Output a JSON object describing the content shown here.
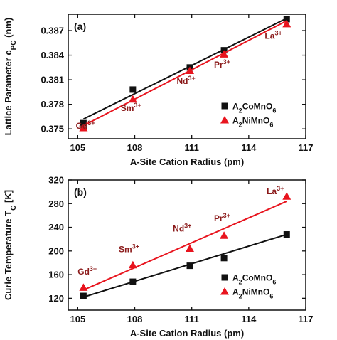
{
  "colors": {
    "co_series": "#111111",
    "ni_series": "#e8141e",
    "ion_label": "#8b1a1a"
  },
  "chart_data": [
    {
      "type": "scatter",
      "panel_label": "(a)",
      "xlabel": "A-Site Cation Radius (pm)",
      "ylabel": "Lattice Parameter c",
      "ylabel_sub": "PC",
      "ylabel_unit": " (nm)",
      "xlim": [
        104.5,
        117
      ],
      "ylim": [
        0.3738,
        0.389
      ],
      "xticks": [
        105,
        108,
        111,
        114,
        117
      ],
      "yticks": [
        0.375,
        0.378,
        0.381,
        0.384,
        0.387
      ],
      "xtick_labels": [
        "105",
        "108",
        "111",
        "114",
        "117"
      ],
      "ytick_labels": [
        "0.375",
        "0.378",
        "0.381",
        "0.384",
        "0.387"
      ],
      "grid": false,
      "legend": "bottom-right",
      "series": [
        {
          "name": "A2CoMnO6",
          "name_parts": [
            "A",
            "2",
            "CoMnO",
            "6"
          ],
          "marker": "square",
          "color": "#111111",
          "x": [
            105.3,
            107.9,
            110.9,
            112.7,
            116.0
          ],
          "y": [
            0.3757,
            0.3798,
            0.3825,
            0.3846,
            0.3884
          ],
          "fit": [
            [
              105.3,
              0.3762
            ],
            [
              116.0,
              0.3885
            ]
          ]
        },
        {
          "name": "A2NiMnO6",
          "name_parts": [
            "A",
            "2",
            "NiMnO",
            "6"
          ],
          "marker": "triangle",
          "color": "#e8141e",
          "x": [
            105.3,
            107.9,
            110.9,
            112.7,
            116.0
          ],
          "y": [
            0.3751,
            0.3786,
            0.3821,
            0.3841,
            0.3878
          ],
          "fit": [
            [
              105.3,
              0.3754
            ],
            [
              116.0,
              0.3882
            ]
          ]
        }
      ],
      "annotations": [
        {
          "element": "Gd",
          "charge": "3+",
          "x": 105.4,
          "y": 0.375
        },
        {
          "element": "Sm",
          "charge": "3+",
          "x": 107.8,
          "y": 0.3772
        },
        {
          "element": "Nd",
          "charge": "3+",
          "x": 110.7,
          "y": 0.3805
        },
        {
          "element": "Pr",
          "charge": "3+",
          "x": 112.6,
          "y": 0.3825
        },
        {
          "element": "La",
          "charge": "3+",
          "x": 115.3,
          "y": 0.386
        }
      ]
    },
    {
      "type": "scatter",
      "panel_label": "(b)",
      "xlabel": "A-Site Cation Radius (pm)",
      "ylabel": "Curie Temperature T",
      "ylabel_sub": "C",
      "ylabel_unit": " [K]",
      "xlim": [
        104.5,
        117
      ],
      "ylim": [
        100,
        320
      ],
      "xticks": [
        105,
        108,
        111,
        114,
        117
      ],
      "yticks": [
        120,
        160,
        200,
        240,
        280,
        320
      ],
      "xtick_labels": [
        "105",
        "108",
        "111",
        "114",
        "117"
      ],
      "ytick_labels": [
        "120",
        "160",
        "200",
        "240",
        "280",
        "320"
      ],
      "grid": false,
      "legend": "bottom-right",
      "series": [
        {
          "name": "A2CoMnO6",
          "name_parts": [
            "A",
            "2",
            "CoMnO",
            "6"
          ],
          "marker": "square",
          "color": "#111111",
          "x": [
            105.3,
            107.9,
            110.9,
            112.7,
            116.0
          ],
          "y": [
            124,
            148,
            175,
            188,
            228
          ],
          "fit": [
            [
              105.3,
              122
            ],
            [
              116.0,
              228
            ]
          ]
        },
        {
          "name": "A2NiMnO6",
          "name_parts": [
            "A",
            "2",
            "NiMnO",
            "6"
          ],
          "marker": "triangle",
          "color": "#e8141e",
          "x": [
            105.3,
            107.9,
            110.9,
            112.7,
            116.0
          ],
          "y": [
            138,
            176,
            204,
            226,
            292
          ],
          "fit": [
            [
              105.3,
              134
            ],
            [
              116.0,
              284
            ]
          ]
        }
      ],
      "annotations": [
        {
          "element": "Gd",
          "charge": "3+",
          "x": 105.5,
          "y": 160
        },
        {
          "element": "Sm",
          "charge": "3+",
          "x": 107.7,
          "y": 198
        },
        {
          "element": "Nd",
          "charge": "3+",
          "x": 110.5,
          "y": 233
        },
        {
          "element": "Pr",
          "charge": "3+",
          "x": 112.6,
          "y": 250
        },
        {
          "element": "La",
          "charge": "3+",
          "x": 115.4,
          "y": 296
        }
      ]
    }
  ]
}
